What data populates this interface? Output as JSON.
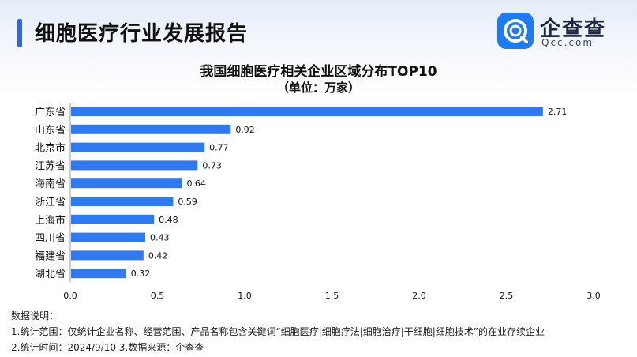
{
  "header": {
    "title": "细胞医疗行业发展报告",
    "logo_text": "企查查",
    "logo_domain": "Qcc.com"
  },
  "colors": {
    "bar": "#2f7af3",
    "accent": "#2f6bd8",
    "logo": "#1c7bf5"
  },
  "chart_data": {
    "type": "bar",
    "orientation": "horizontal",
    "title": "我国细胞医疗相关企业区域分布TOP10",
    "subtitle": "（单位：万家）",
    "categories": [
      "广东省",
      "山东省",
      "北京市",
      "江苏省",
      "海南省",
      "浙江省",
      "上海市",
      "四川省",
      "福建省",
      "湖北省"
    ],
    "values": [
      2.71,
      0.92,
      0.77,
      0.73,
      0.64,
      0.59,
      0.48,
      0.43,
      0.42,
      0.32
    ],
    "value_labels": [
      "2.71",
      "0.92",
      "0.77",
      "0.73",
      "0.64",
      "0.59",
      "0.48",
      "0.43",
      "0.42",
      "0.32"
    ],
    "xlim": [
      0,
      3.0
    ],
    "xticks": [
      0,
      0.5,
      1.0,
      1.5,
      2.0,
      2.5,
      3.0
    ],
    "xtick_labels": [
      "0.0",
      "0.5",
      "1.0",
      "1.5",
      "2.0",
      "2.5",
      "3.0"
    ],
    "grid": false,
    "legend": "none"
  },
  "notes": {
    "heading": "数据说明：",
    "line1": "1.统计范围：仅统计企业名称、经营范围、产品名称包含关键词“细胞医疗|细胞疗法|细胞治疗|干细胞|细胞技术”的在业存续企业",
    "line2": "2.统计时间：2024/9/10    3.数据来源：企查查"
  }
}
